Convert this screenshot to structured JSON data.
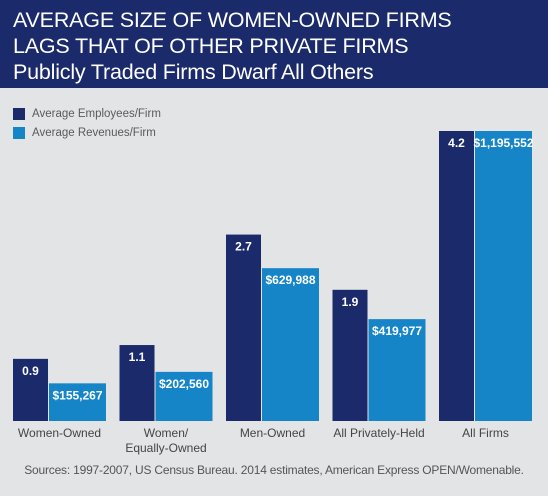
{
  "header": {
    "title_line1": "AVERAGE SIZE OF WOMEN-OWNED FIRMS",
    "title_line2": "LAGS THAT OF OTHER PRIVATE FIRMS",
    "subtitle": "Publicly Traded Firms Dwarf All Others"
  },
  "source": "Sources: 1997-2007, US Census Bureau. 2014 estimates, American Express OPEN/Womenable.",
  "colors": {
    "header_bg": "#1b2a6b",
    "employees": "#1b2a6b",
    "revenues": "#1585c8",
    "plot_bg": "#e3e4e6"
  },
  "chart_data": {
    "type": "bar",
    "title": "AVERAGE SIZE OF WOMEN-OWNED FIRMS LAGS THAT OF OTHER PRIVATE FIRMS",
    "subtitle": "Publicly Traded Firms Dwarf All Others",
    "categories": [
      [
        "Women-Owned"
      ],
      [
        "Women/",
        "Equally-Owned"
      ],
      [
        "Men-Owned"
      ],
      [
        "All Privately-Held"
      ],
      [
        "All Firms"
      ]
    ],
    "series": [
      {
        "name": "Average Employees/Firm",
        "values": [
          0.9,
          1.1,
          2.7,
          1.9,
          4.2
        ],
        "labels": [
          "0.9",
          "1.1",
          "2.7",
          "1.9",
          "4.2"
        ]
      },
      {
        "name": "Average Revenues/Firm",
        "values": [
          155267,
          202560,
          629988,
          419977,
          1195552
        ],
        "labels": [
          "$155,267",
          "$202,560",
          "$629,988",
          "$419,977",
          "$1,195,552"
        ]
      }
    ],
    "legend_position": "top-left",
    "grid": false
  }
}
